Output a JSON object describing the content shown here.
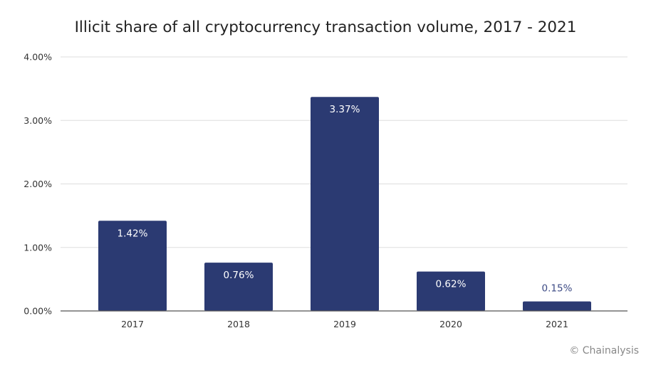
{
  "chart_data": {
    "type": "bar",
    "title": "Illicit share of all cryptocurrency transaction volume, 2017 - 2021",
    "categories": [
      "2017",
      "2018",
      "2019",
      "2020",
      "2021"
    ],
    "values": [
      1.42,
      0.76,
      3.37,
      0.62,
      0.15
    ],
    "data_labels": [
      "1.42%",
      "0.76%",
      "3.37%",
      "0.62%",
      "0.15%"
    ],
    "yticks": [
      "0.00%",
      "1.00%",
      "2.00%",
      "3.00%",
      "4.00%"
    ],
    "ylim": [
      0,
      4
    ],
    "xlabel": "",
    "ylabel": "",
    "grid": true,
    "colors": {
      "bar": "#2b3a72",
      "label_inside": "#ffffff",
      "label_outside": "#3d4b85",
      "grid": "#dddddd",
      "axis": "#555555"
    }
  },
  "credit": "© Chainalysis"
}
